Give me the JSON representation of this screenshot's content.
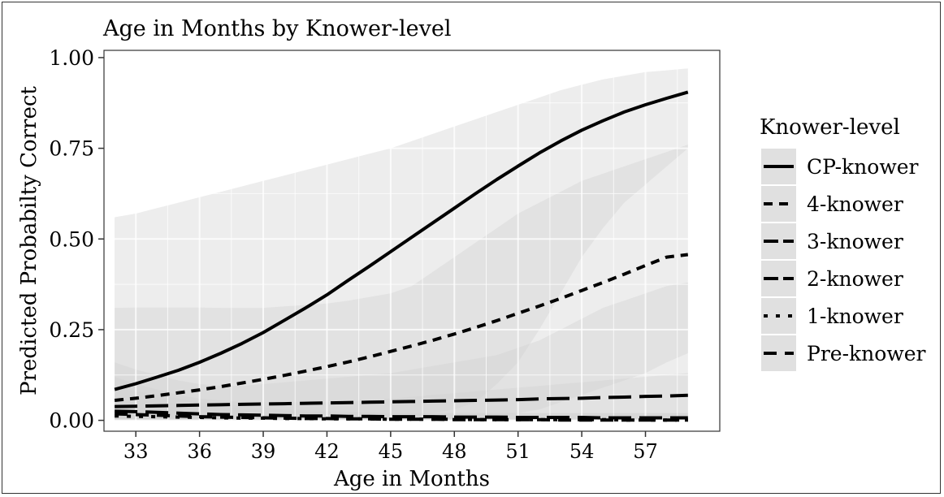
{
  "chart_data": {
    "type": "line",
    "title": "Age in Months by Knower-level",
    "xlabel": "Age in Months",
    "ylabel": "Predicted Probabilty Correct",
    "xlim": [
      31.5,
      60.5
    ],
    "ylim": [
      -0.03,
      1.02
    ],
    "x_ticks": [
      33,
      36,
      39,
      42,
      45,
      48,
      51,
      54,
      57
    ],
    "y_ticks": [
      0.0,
      0.25,
      0.5,
      0.75,
      1.0
    ],
    "y_tick_labels": [
      "0.00",
      "0.25",
      "0.50",
      "0.75",
      "1.00"
    ],
    "grid": true,
    "legend": {
      "title": "Knower-level",
      "placement": "right"
    },
    "x": [
      32,
      33,
      34,
      35,
      36,
      37,
      38,
      39,
      40,
      41,
      42,
      43,
      44,
      45,
      46,
      47,
      48,
      49,
      50,
      51,
      52,
      53,
      54,
      55,
      56,
      57,
      58,
      59
    ],
    "series": [
      {
        "name": "CP-knower",
        "style": "solid",
        "values": [
          0.085,
          0.101,
          0.119,
          0.138,
          0.16,
          0.185,
          0.212,
          0.242,
          0.276,
          0.31,
          0.346,
          0.386,
          0.425,
          0.465,
          0.505,
          0.545,
          0.585,
          0.625,
          0.664,
          0.701,
          0.737,
          0.77,
          0.8,
          0.826,
          0.85,
          0.87,
          0.888,
          0.905
        ],
        "band_lower": [
          0.0,
          0.0,
          0.0,
          0.0,
          0.0,
          0.0,
          0.0,
          0.0,
          0.0,
          0.0,
          0.0,
          0.0,
          0.0,
          0.0,
          0.01,
          0.02,
          0.03,
          0.05,
          0.1,
          0.16,
          0.25,
          0.35,
          0.45,
          0.53,
          0.6,
          0.65,
          0.7,
          0.75
        ],
        "band_upper": [
          0.56,
          0.57,
          0.585,
          0.6,
          0.615,
          0.63,
          0.645,
          0.66,
          0.675,
          0.69,
          0.705,
          0.72,
          0.735,
          0.75,
          0.77,
          0.79,
          0.81,
          0.83,
          0.85,
          0.87,
          0.89,
          0.91,
          0.925,
          0.94,
          0.95,
          0.96,
          0.965,
          0.97
        ]
      },
      {
        "name": "4-knower",
        "style": "short-dash",
        "values": [
          0.055,
          0.061,
          0.068,
          0.076,
          0.084,
          0.093,
          0.103,
          0.113,
          0.124,
          0.136,
          0.148,
          0.161,
          0.175,
          0.19,
          0.205,
          0.221,
          0.238,
          0.256,
          0.275,
          0.295,
          0.315,
          0.336,
          0.358,
          0.38,
          0.403,
          0.427,
          0.45,
          0.457
        ],
        "band_lower": [
          0.0,
          0.0,
          0.0,
          0.0,
          0.0,
          0.0,
          0.0,
          0.0,
          0.0,
          0.0,
          0.0,
          0.0,
          0.0,
          0.0,
          0.0,
          0.0,
          0.0,
          0.0,
          0.01,
          0.02,
          0.03,
          0.05,
          0.07,
          0.09,
          0.11,
          0.13,
          0.16,
          0.185
        ],
        "band_upper": [
          0.31,
          0.311,
          0.311,
          0.311,
          0.311,
          0.31,
          0.31,
          0.31,
          0.314,
          0.318,
          0.322,
          0.33,
          0.34,
          0.35,
          0.37,
          0.41,
          0.45,
          0.49,
          0.53,
          0.57,
          0.6,
          0.63,
          0.66,
          0.68,
          0.7,
          0.72,
          0.74,
          0.76
        ]
      },
      {
        "name": "3-knower",
        "style": "long-dash",
        "values": [
          0.038,
          0.039,
          0.04,
          0.041,
          0.042,
          0.043,
          0.044,
          0.045,
          0.046,
          0.047,
          0.048,
          0.049,
          0.05,
          0.051,
          0.052,
          0.053,
          0.054,
          0.055,
          0.056,
          0.057,
          0.059,
          0.06,
          0.061,
          0.063,
          0.064,
          0.066,
          0.067,
          0.069
        ],
        "band_lower": [
          0.0,
          0.0,
          0.0,
          0.0,
          0.0,
          0.0,
          0.0,
          0.0,
          0.0,
          0.0,
          0.0,
          0.0,
          0.0,
          0.0,
          0.0,
          0.0,
          0.0,
          0.0,
          0.0,
          0.0,
          0.0,
          0.0,
          0.0,
          0.0,
          0.0,
          0.0,
          0.0,
          0.0
        ],
        "band_upper": [
          0.16,
          0.14,
          0.125,
          0.11,
          0.1,
          0.095,
          0.095,
          0.1,
          0.105,
          0.11,
          0.115,
          0.12,
          0.125,
          0.13,
          0.14,
          0.15,
          0.16,
          0.17,
          0.18,
          0.2,
          0.22,
          0.25,
          0.28,
          0.31,
          0.33,
          0.35,
          0.37,
          0.38
        ]
      },
      {
        "name": "2-knower",
        "style": "long-dash",
        "values": [
          0.025,
          0.024,
          0.022,
          0.02,
          0.018,
          0.016,
          0.015,
          0.014,
          0.013,
          0.012,
          0.012,
          0.011,
          0.011,
          0.01,
          0.01,
          0.01,
          0.009,
          0.009,
          0.009,
          0.008,
          0.008,
          0.008,
          0.008,
          0.007,
          0.007,
          0.007,
          0.007,
          0.007
        ],
        "band_lower": [
          0.0,
          0.0,
          0.0,
          0.0,
          0.0,
          0.0,
          0.0,
          0.0,
          0.0,
          0.0,
          0.0,
          0.0,
          0.0,
          0.0,
          0.0,
          0.0,
          0.0,
          0.0,
          0.0,
          0.0,
          0.0,
          0.0,
          0.0,
          0.0,
          0.0,
          0.0,
          0.0,
          0.0
        ],
        "band_upper": [
          0.12,
          0.1,
          0.085,
          0.07,
          0.06,
          0.055,
          0.05,
          0.05,
          0.05,
          0.05,
          0.05,
          0.05,
          0.055,
          0.06,
          0.065,
          0.07,
          0.075,
          0.08,
          0.085,
          0.09,
          0.095,
          0.1,
          0.105,
          0.11,
          0.115,
          0.12,
          0.125,
          0.13
        ]
      },
      {
        "name": "1-knower",
        "style": "dotted",
        "values": [
          0.012,
          0.011,
          0.01,
          0.009,
          0.008,
          0.007,
          0.006,
          0.006,
          0.005,
          0.005,
          0.004,
          0.004,
          0.004,
          0.003,
          0.003,
          0.003,
          0.003,
          0.002,
          0.002,
          0.002,
          0.002,
          0.002,
          0.002,
          0.002,
          0.001,
          0.001,
          0.001,
          0.001
        ],
        "band_lower": [
          0.0,
          0.0,
          0.0,
          0.0,
          0.0,
          0.0,
          0.0,
          0.0,
          0.0,
          0.0,
          0.0,
          0.0,
          0.0,
          0.0,
          0.0,
          0.0,
          0.0,
          0.0,
          0.0,
          0.0,
          0.0,
          0.0,
          0.0,
          0.0,
          0.0,
          0.0,
          0.0,
          0.0
        ],
        "band_upper": [
          0.06,
          0.055,
          0.05,
          0.045,
          0.04,
          0.035,
          0.03,
          0.028,
          0.026,
          0.024,
          0.022,
          0.02,
          0.02,
          0.02,
          0.02,
          0.02,
          0.02,
          0.02,
          0.02,
          0.02,
          0.02,
          0.02,
          0.02,
          0.02,
          0.02,
          0.02,
          0.02,
          0.02
        ]
      },
      {
        "name": "Pre-knower",
        "style": "dash",
        "values": [
          0.018,
          0.016,
          0.014,
          0.012,
          0.01,
          0.009,
          0.008,
          0.007,
          0.006,
          0.005,
          0.005,
          0.004,
          0.004,
          0.003,
          0.003,
          0.003,
          0.002,
          0.002,
          0.002,
          0.002,
          0.002,
          0.001,
          0.001,
          0.001,
          0.001,
          0.001,
          0.001,
          0.001
        ],
        "band_lower": [
          0.0,
          0.0,
          0.0,
          0.0,
          0.0,
          0.0,
          0.0,
          0.0,
          0.0,
          0.0,
          0.0,
          0.0,
          0.0,
          0.0,
          0.0,
          0.0,
          0.0,
          0.0,
          0.0,
          0.0,
          0.0,
          0.0,
          0.0,
          0.0,
          0.0,
          0.0,
          0.0,
          0.0
        ],
        "band_upper": [
          0.09,
          0.08,
          0.07,
          0.06,
          0.05,
          0.045,
          0.04,
          0.035,
          0.03,
          0.028,
          0.026,
          0.024,
          0.022,
          0.02,
          0.02,
          0.02,
          0.02,
          0.02,
          0.02,
          0.02,
          0.02,
          0.02,
          0.02,
          0.02,
          0.02,
          0.02,
          0.02,
          0.02
        ]
      }
    ]
  },
  "colors": {
    "band": "#d3d3d3",
    "grid": "#ebebeb",
    "line": "#000000",
    "frame": "#333333",
    "legend_key_bg": "#e0e0e0"
  }
}
